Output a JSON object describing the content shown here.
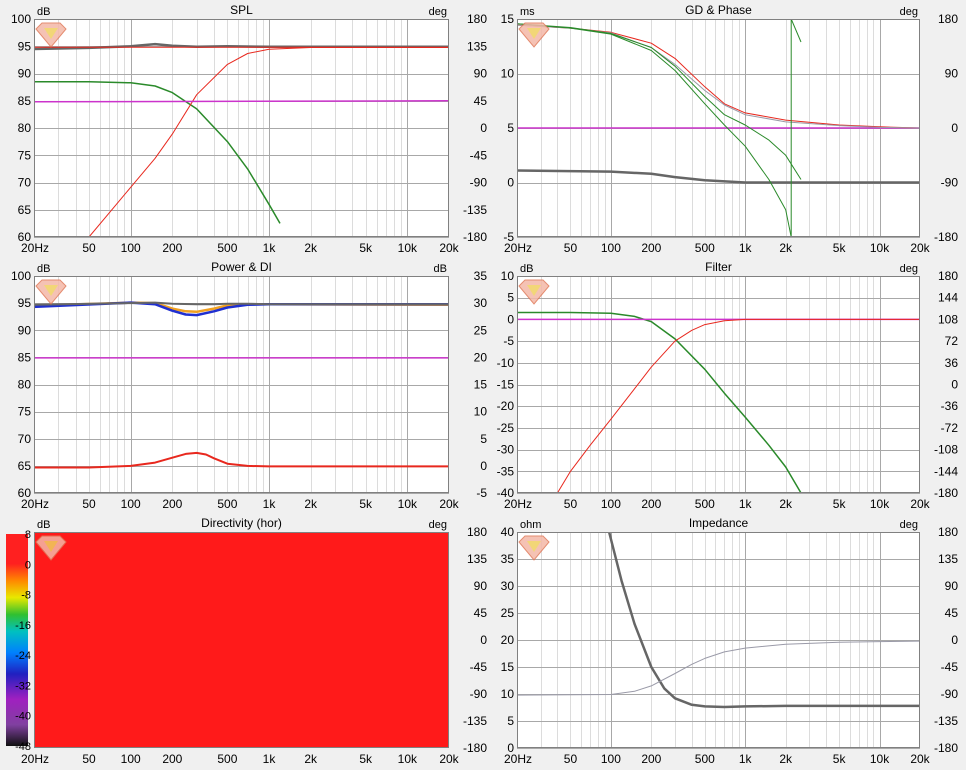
{
  "colors": {
    "background": "#f0f0f0",
    "plot_bg": "#ffffff",
    "grid_major": "#a8a8a8",
    "grid_minor": "#dcdcdc",
    "red": "#e8281e",
    "green": "#2a8a2a",
    "magenta": "#cc33cc",
    "gray": "#666666",
    "lightgray": "#9a9aa8",
    "blue": "#2030d0",
    "orange": "#f0a020",
    "heatmap_red": "#ff1a1a"
  },
  "freq_ticks": [
    "20Hz",
    "50",
    "100",
    "200",
    "500",
    "1k",
    "2k",
    "5k",
    "10k",
    "20k"
  ],
  "chart_data": [
    {
      "id": "spl",
      "type": "line",
      "title": "SPL",
      "ylabel_left": "dB",
      "ylabel_right": "deg",
      "xscale": "log",
      "xlim": [
        20,
        20000
      ],
      "ylim_left": [
        60,
        100
      ],
      "ylim_right": [
        -180,
        180
      ],
      "left_ticks": [
        "60",
        "65",
        "70",
        "75",
        "80",
        "85",
        "90",
        "95",
        "100"
      ],
      "right_ticks": [
        "-180",
        "-135",
        "-90",
        "-45",
        "0",
        "45",
        "90",
        "135",
        "180"
      ],
      "grid": true,
      "series": [
        {
          "color": "gray",
          "width": 2.5,
          "axis": "left",
          "x": [
            20,
            50,
            100,
            150,
            200,
            300,
            500,
            1000,
            20000
          ],
          "y": [
            94.5,
            94.7,
            95.0,
            95.4,
            95.1,
            94.9,
            95.0,
            94.9,
            94.9
          ]
        },
        {
          "color": "red",
          "width": 1,
          "axis": "left",
          "x": [
            20,
            20000
          ],
          "y": [
            94.8,
            94.8
          ]
        },
        {
          "color": "green",
          "width": 1.5,
          "axis": "left",
          "x": [
            20,
            50,
            100,
            150,
            200,
            300,
            500,
            700,
            1000,
            1200
          ],
          "y": [
            88.5,
            88.5,
            88.3,
            87.7,
            86.5,
            83.5,
            77.5,
            72.5,
            66.0,
            62.5
          ]
        },
        {
          "color": "red",
          "width": 1,
          "axis": "right",
          "x": [
            50,
            70,
            100,
            150,
            200,
            300,
            500,
            700,
            1000,
            2000,
            20000
          ],
          "y": [
            -180,
            -140,
            -98,
            -50,
            -10,
            55,
            105,
            123,
            130,
            133,
            133
          ]
        },
        {
          "color": "magenta",
          "width": 1.5,
          "axis": "left",
          "x": [
            20,
            20000
          ],
          "y": [
            84.8,
            85.0
          ]
        }
      ]
    },
    {
      "id": "gd",
      "type": "line",
      "title": "GD & Phase",
      "ylabel_left": "ms",
      "ylabel_right": "deg",
      "xscale": "log",
      "xlim": [
        20,
        20000
      ],
      "ylim_left": [
        -5,
        15
      ],
      "ylim_right": [
        -180,
        180
      ],
      "left_ticks": [
        "-5",
        "0",
        "5",
        "10",
        "15"
      ],
      "right_ticks": [
        "-180",
        "-90",
        "0",
        "90",
        "180"
      ],
      "grid": true,
      "series": [
        {
          "color": "gray",
          "width": 2.5,
          "axis": "left",
          "x": [
            20,
            100,
            200,
            300,
            500,
            1000,
            2000,
            20000
          ],
          "y": [
            1.1,
            1.0,
            0.8,
            0.5,
            0.2,
            0.0,
            0.0,
            0.0
          ]
        },
        {
          "color": "magenta",
          "width": 1.5,
          "axis": "right",
          "x": [
            20,
            20000
          ],
          "y": [
            0,
            0
          ]
        },
        {
          "color": "red",
          "width": 1,
          "axis": "right",
          "x": [
            20,
            50,
            100,
            200,
            300,
            500,
            700,
            1000,
            2000,
            5000,
            10000,
            20000
          ],
          "y": [
            170,
            165,
            158,
            140,
            115,
            68,
            40,
            25,
            13,
            5,
            2,
            0
          ]
        },
        {
          "color": "lightgray",
          "width": 1,
          "axis": "right",
          "x": [
            20,
            50,
            100,
            200,
            300,
            500,
            700,
            1000,
            2000,
            5000,
            10000,
            20000
          ],
          "y": [
            170,
            165,
            157,
            133,
            105,
            62,
            38,
            22,
            10,
            4,
            1,
            0
          ]
        },
        {
          "color": "green",
          "width": 1,
          "axis": "right",
          "x": [
            20,
            50,
            100,
            200,
            300,
            500,
            700,
            1000,
            1500,
            2000,
            2200
          ],
          "y": [
            172,
            165,
            155,
            128,
            95,
            40,
            5,
            -30,
            -85,
            -135,
            -180
          ]
        },
        {
          "color": "green",
          "width": 1,
          "axis": "right",
          "x": [
            2200,
            2200
          ],
          "y": [
            -180,
            180
          ]
        },
        {
          "color": "green",
          "width": 1,
          "axis": "right",
          "x": [
            2200,
            2600
          ],
          "y": [
            180,
            142
          ]
        },
        {
          "color": "green",
          "width": 1,
          "axis": "right",
          "x": [
            20,
            50,
            100,
            200,
            300,
            500,
            700,
            1000,
            1500,
            2000,
            2600
          ],
          "y": [
            172,
            166,
            156,
            133,
            102,
            52,
            22,
            5,
            -20,
            -45,
            -85
          ]
        }
      ]
    },
    {
      "id": "power",
      "type": "line",
      "title": "Power & DI",
      "ylabel_left": "dB",
      "ylabel_right": "dB",
      "xscale": "log",
      "xlim": [
        20,
        20000
      ],
      "ylim_left": [
        60,
        100
      ],
      "ylim_right": [
        -5,
        35
      ],
      "left_ticks": [
        "60",
        "65",
        "70",
        "75",
        "80",
        "85",
        "90",
        "95",
        "100"
      ],
      "right_ticks": [
        "-5",
        "0",
        "5",
        "10",
        "15",
        "20",
        "25",
        "30",
        "35"
      ],
      "grid": true,
      "series": [
        {
          "color": "orange",
          "width": 2.5,
          "axis": "left",
          "x": [
            20,
            100,
            150,
            200,
            250,
            300,
            400,
            500,
            700,
            1000,
            20000
          ],
          "y": [
            94.5,
            95.1,
            95.0,
            94.0,
            93.5,
            93.4,
            94.0,
            94.6,
            94.8,
            94.8,
            94.7
          ]
        },
        {
          "color": "blue",
          "width": 2.5,
          "axis": "left",
          "x": [
            20,
            100,
            150,
            200,
            250,
            300,
            400,
            500,
            700,
            1000,
            20000
          ],
          "y": [
            94.3,
            95.1,
            94.8,
            93.6,
            92.9,
            92.8,
            93.5,
            94.2,
            94.7,
            94.8,
            94.8
          ]
        },
        {
          "color": "gray",
          "width": 2,
          "axis": "left",
          "x": [
            20,
            100,
            150,
            200,
            300,
            400,
            500,
            700,
            1000,
            20000
          ],
          "y": [
            94.7,
            95.0,
            95.1,
            94.9,
            94.8,
            94.8,
            94.9,
            94.9,
            94.8,
            94.8
          ]
        },
        {
          "color": "magenta",
          "width": 1.5,
          "axis": "left",
          "x": [
            20,
            20000
          ],
          "y": [
            84.9,
            84.9
          ]
        },
        {
          "color": "red",
          "width": 2,
          "axis": "right",
          "x": [
            20,
            50,
            100,
            150,
            200,
            250,
            300,
            350,
            400,
            500,
            700,
            1000,
            2000,
            20000
          ],
          "y": [
            -0.3,
            -0.3,
            0.0,
            0.6,
            1.5,
            2.2,
            2.4,
            2.1,
            1.4,
            0.4,
            0.0,
            -0.1,
            -0.1,
            -0.1
          ]
        }
      ]
    },
    {
      "id": "filter",
      "type": "line",
      "title": "Filter",
      "ylabel_left": "dB",
      "ylabel_right": "deg",
      "xscale": "log",
      "xlim": [
        20,
        20000
      ],
      "ylim_left": [
        -40,
        10
      ],
      "ylim_right": [
        -180,
        180
      ],
      "left_ticks": [
        "-40",
        "-35",
        "-30",
        "-25",
        "-20",
        "-15",
        "-10",
        "-5",
        "0",
        "5",
        "10"
      ],
      "right_ticks": [
        "-180",
        "-144",
        "-108",
        "-72",
        "-36",
        "0",
        "36",
        "72",
        "108",
        "144",
        "180"
      ],
      "grid": true,
      "series": [
        {
          "color": "green",
          "width": 1.5,
          "axis": "left",
          "x": [
            20,
            50,
            100,
            150,
            200,
            300,
            500,
            700,
            1000,
            1500,
            2000,
            2600
          ],
          "y": [
            1.6,
            1.6,
            1.4,
            0.7,
            -0.5,
            -4.5,
            -11.5,
            -17,
            -22.5,
            -29,
            -34,
            -40
          ]
        },
        {
          "color": "magenta",
          "width": 1.5,
          "axis": "left",
          "x": [
            20,
            20000
          ],
          "y": [
            0,
            0
          ]
        },
        {
          "color": "red",
          "width": 1,
          "axis": "left",
          "x": [
            40,
            50,
            70,
            100,
            150,
            200,
            300,
            400,
            500,
            700,
            1000,
            20000
          ],
          "y": [
            -40,
            -35,
            -29,
            -23,
            -16,
            -11,
            -5,
            -2.5,
            -1.2,
            -0.3,
            0,
            0
          ]
        }
      ]
    },
    {
      "id": "directivity",
      "type": "heatmap",
      "title": "Directivity (hor)",
      "ylabel_left": "dB",
      "ylabel_right": "deg",
      "xscale": "log",
      "xlim": [
        20,
        20000
      ],
      "ylim_right": [
        -180,
        180
      ],
      "right_ticks": [
        "-180",
        "-135",
        "-90",
        "-45",
        "0",
        "45",
        "90",
        "135",
        "180"
      ],
      "colorbar_ticks": [
        "-48",
        "-40",
        "-32",
        "-24",
        "-16",
        "-8",
        "0",
        "8"
      ],
      "values": "uniform 0 dB",
      "grid": false
    },
    {
      "id": "impedance",
      "type": "line",
      "title": "Impedance",
      "ylabel_left": "ohm",
      "ylabel_right": "deg",
      "xscale": "log",
      "xlim": [
        20,
        20000
      ],
      "ylim_left": [
        0,
        40
      ],
      "ylim_right": [
        -180,
        180
      ],
      "left_ticks": [
        "0",
        "5",
        "10",
        "15",
        "20",
        "25",
        "30",
        "35",
        "40"
      ],
      "right_ticks": [
        "-180",
        "-135",
        "-90",
        "-45",
        "0",
        "45",
        "90",
        "135",
        "180"
      ],
      "grid": true,
      "series": [
        {
          "color": "gray",
          "width": 2.5,
          "axis": "left",
          "x": [
            97,
            120,
            150,
            200,
            250,
            300,
            400,
            500,
            700,
            1000,
            2000,
            20000
          ],
          "y": [
            40,
            31,
            23,
            15,
            11,
            9.2,
            8.0,
            7.7,
            7.6,
            7.7,
            7.8,
            7.8
          ]
        },
        {
          "color": "lightgray",
          "width": 1,
          "axis": "left",
          "x": [
            20,
            100,
            150,
            200,
            300,
            400,
            500,
            700,
            1000,
            2000,
            5000,
            10000,
            20000
          ],
          "y": [
            9.8,
            9.9,
            10.5,
            11.5,
            13.8,
            15.5,
            16.6,
            17.8,
            18.5,
            19.2,
            19.6,
            19.7,
            19.8
          ]
        }
      ]
    }
  ]
}
